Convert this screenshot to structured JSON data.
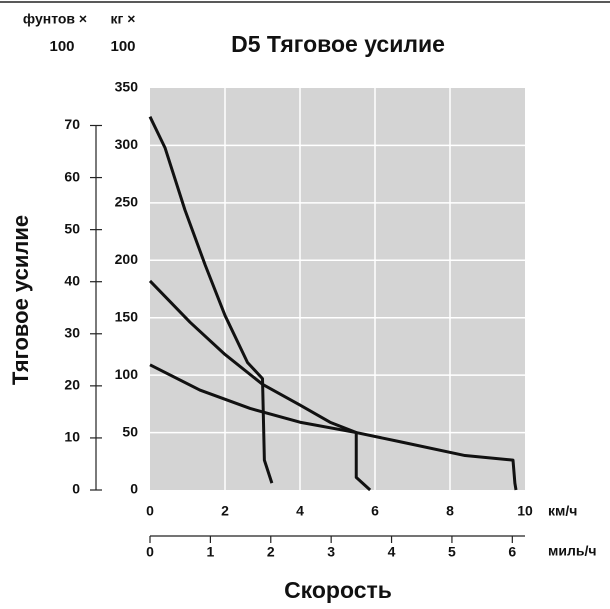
{
  "chart_data": {
    "type": "line",
    "title": "D5 Тяговое усилие",
    "y_label": "Тяговое усилие",
    "x_label": "Скорость",
    "y_unit": [
      "кг ×",
      "100"
    ],
    "y2_unit": [
      "фунтов ×",
      "100"
    ],
    "x_unit": "км/ч",
    "x2_unit": "миль/ч",
    "xlim": [
      0,
      10
    ],
    "xticks": [
      0,
      2,
      4,
      6,
      8,
      10
    ],
    "x2lim": [
      0,
      6.21
    ],
    "x2ticks": [
      0,
      1,
      2,
      3,
      4,
      5,
      6
    ],
    "ylim": [
      0,
      350
    ],
    "yticks": [
      0,
      50,
      100,
      150,
      200,
      250,
      300,
      350
    ],
    "y2lim": [
      0,
      77.2
    ],
    "y2ticks": [
      0,
      10,
      20,
      30,
      40,
      50,
      60,
      70
    ],
    "grid": true,
    "background": "#d4d4d4",
    "series": [
      {
        "color": "#111111",
        "x": [
          0,
          0.4,
          0.93,
          1.47,
          2.0,
          2.6,
          3.0,
          3.05,
          3.25
        ],
        "values": [
          325,
          298,
          244,
          196,
          152,
          111,
          97,
          26,
          6
        ]
      },
      {
        "color": "#111111",
        "x": [
          0,
          1.07,
          2.0,
          3.0,
          4.0,
          4.8,
          5.5,
          5.5,
          5.87
        ],
        "values": [
          182,
          146,
          118,
          92,
          74,
          59,
          50,
          11,
          0
        ]
      },
      {
        "color": "#111111",
        "x": [
          0,
          1.33,
          2.67,
          4.0,
          5.5,
          6.67,
          8.4,
          9.68,
          9.73,
          9.76
        ],
        "values": [
          109,
          87,
          71,
          59,
          50,
          42,
          30,
          26,
          6,
          0
        ]
      }
    ]
  }
}
